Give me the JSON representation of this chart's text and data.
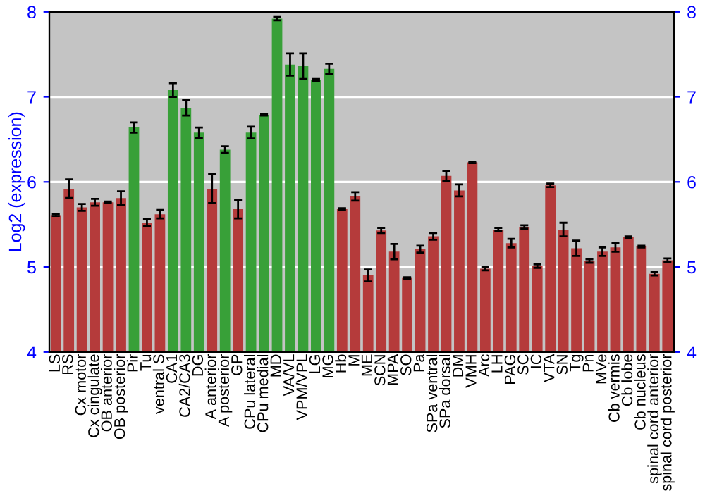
{
  "chart_data": {
    "type": "bar",
    "ylabel": "Log2 (expression)",
    "categories": [
      "LS",
      "RS",
      "Cx motor",
      "Cx cingulate",
      "OB anterior",
      "OB posterior",
      "Pir",
      "Tu",
      "ventral S",
      "CA1",
      "CA2/CA3",
      "DG",
      "A anterior",
      "A posterior",
      "GP",
      "CPu lateral",
      "CPu medial",
      "MD",
      "VA/VL",
      "VPM/VPL",
      "LG",
      "MG",
      "Hb",
      "M",
      "ME",
      "SCN",
      "MPA",
      "SO",
      "Pa",
      "SPa ventral",
      "SPa dorsal",
      "DM",
      "VMH",
      "Arc",
      "LH",
      "PAG",
      "SC",
      "IC",
      "VTA",
      "SN",
      "Tg",
      "Pn",
      "MVe",
      "Cb vermis",
      "Cb lobe",
      "Cb nucleus",
      "spinal cord anterior",
      "spinal cord posterior"
    ],
    "values": [
      5.61,
      5.92,
      5.7,
      5.76,
      5.76,
      5.81,
      6.64,
      5.52,
      5.62,
      7.08,
      6.87,
      6.58,
      5.92,
      6.38,
      5.68,
      6.58,
      6.79,
      7.92,
      7.38,
      7.36,
      7.2,
      7.33,
      5.68,
      5.83,
      4.9,
      5.43,
      5.18,
      4.87,
      5.21,
      5.36,
      6.07,
      5.9,
      6.23,
      4.98,
      5.44,
      5.28,
      5.47,
      5.01,
      5.96,
      5.44,
      5.22,
      5.07,
      5.18,
      5.23,
      5.35,
      5.24,
      4.92,
      5.08
    ],
    "errors": [
      0.01,
      0.11,
      0.04,
      0.04,
      0.01,
      0.08,
      0.06,
      0.04,
      0.05,
      0.08,
      0.09,
      0.06,
      0.17,
      0.04,
      0.11,
      0.07,
      0.01,
      0.02,
      0.13,
      0.15,
      0.01,
      0.06,
      0.01,
      0.05,
      0.07,
      0.03,
      0.09,
      0.01,
      0.04,
      0.04,
      0.06,
      0.07,
      0.01,
      0.02,
      0.02,
      0.05,
      0.02,
      0.02,
      0.02,
      0.08,
      0.09,
      0.02,
      0.05,
      0.05,
      0.01,
      0.01,
      0.02,
      0.02
    ],
    "colors": [
      "#b53b3b",
      "#b53b3b",
      "#b53b3b",
      "#b53b3b",
      "#b53b3b",
      "#b53b3b",
      "#38a038",
      "#b53b3b",
      "#b53b3b",
      "#38a038",
      "#38a038",
      "#38a038",
      "#b53b3b",
      "#38a038",
      "#b53b3b",
      "#38a038",
      "#38a038",
      "#38a038",
      "#38a038",
      "#38a038",
      "#38a038",
      "#38a038",
      "#b53b3b",
      "#b53b3b",
      "#b53b3b",
      "#b53b3b",
      "#b53b3b",
      "#b53b3b",
      "#b53b3b",
      "#b53b3b",
      "#b53b3b",
      "#b53b3b",
      "#b53b3b",
      "#b53b3b",
      "#b53b3b",
      "#b53b3b",
      "#b53b3b",
      "#b53b3b",
      "#b53b3b",
      "#b53b3b",
      "#b53b3b",
      "#b53b3b",
      "#b53b3b",
      "#b53b3b",
      "#b53b3b",
      "#b53b3b",
      "#b53b3b",
      "#b53b3b"
    ],
    "ylim": [
      4,
      8
    ],
    "yticks": [
      4,
      5,
      6,
      7,
      8
    ],
    "y2lim": [
      4,
      8
    ],
    "y2ticks": [
      4,
      5,
      6,
      7,
      8
    ],
    "grid": "y"
  }
}
